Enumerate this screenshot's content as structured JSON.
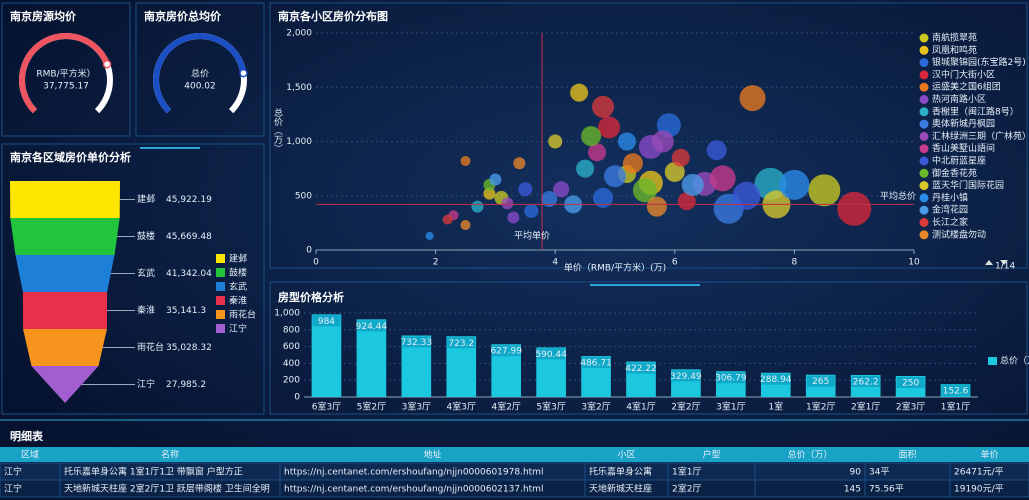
{
  "chart_data": [
    {
      "type": "gauge",
      "title": "南京房源均价",
      "label": "RMB/平方米）",
      "values": [
        37775.17
      ],
      "value_labels": [
        "37,775.17"
      ],
      "ylim": [
        0,
        50000
      ],
      "color": "#ee5560"
    },
    {
      "type": "gauge",
      "title": "南京房价总均价",
      "label": "总价",
      "values": [
        400.02
      ],
      "ylim": [
        0,
        500
      ],
      "color": "#1c4fc4"
    },
    {
      "type": "funnel",
      "title": "南京各区域房价单价分析",
      "categories": [
        "建邺",
        "鼓楼",
        "玄武",
        "秦淮",
        "雨花台",
        "江宁"
      ],
      "values": [
        45922.19,
        45669.48,
        41342.04,
        35141.3,
        35028.32,
        27985.2
      ],
      "value_labels": [
        "45,922.19",
        "45,669.48",
        "41,342.04",
        "35,141.3",
        "35,028.32",
        "27,985.2"
      ],
      "colors": [
        "#ffe600",
        "#21c43a",
        "#1e7fd8",
        "#e8304a",
        "#f7941d",
        "#a25ed1"
      ]
    },
    {
      "type": "scatter",
      "title": "南京各小区房价分布图",
      "xlabel": "单价（RMB/平方米）(万)",
      "ylabel": "总价（万）",
      "xlim": [
        0,
        10
      ],
      "xticks": [
        0,
        2,
        4,
        6,
        8,
        10
      ],
      "ylim": [
        0,
        2000
      ],
      "yticks": [
        0,
        500,
        {
          "value": 1000,
          "label": "1,000"
        },
        {
          "value": 1500,
          "label": "1,500"
        },
        {
          "value": 2000,
          "label": "2,000"
        }
      ],
      "mark_lines": [
        {
          "label": "平均单价",
          "axis": "x",
          "value": 3.78
        },
        {
          "label": "平均总价",
          "axis": "y",
          "value": 420
        }
      ],
      "legend_page": "1/14",
      "series": [
        {
          "name": "南航揽翠苑",
          "color": "#c8c820",
          "x": [
            8.5,
            3.1,
            5.2
          ],
          "y": [
            550,
            480,
            700
          ],
          "size": [
            16,
            7,
            9
          ]
        },
        {
          "name": "凤凰和鸣苑",
          "color": "#e8c21a",
          "x": [
            4.4,
            5.6,
            2.9
          ],
          "y": [
            1450,
            620,
            520
          ],
          "size": [
            9,
            12,
            6
          ]
        },
        {
          "name": "银城聚锦园(东宝路2号)",
          "color": "#2a6ad8",
          "x": [
            5.9,
            4.8,
            3.6
          ],
          "y": [
            1150,
            480,
            360
          ],
          "size": [
            12,
            10,
            7
          ]
        },
        {
          "name": "汉中门大街小区",
          "color": "#d8283a",
          "x": [
            9.0,
            4.9,
            6.2
          ],
          "y": [
            380,
            1130,
            450
          ],
          "size": [
            17,
            11,
            9
          ]
        },
        {
          "name": "运盛美之国6组团",
          "color": "#e87820",
          "x": [
            7.3,
            5.3,
            2.5
          ],
          "y": [
            1400,
            800,
            820
          ],
          "size": [
            13,
            10,
            5
          ]
        },
        {
          "name": "热河南路小区",
          "color": "#8a4ac8",
          "x": [
            5.6,
            4.1,
            3.3
          ],
          "y": [
            950,
            560,
            300
          ],
          "size": [
            12,
            8,
            6
          ]
        },
        {
          "name": "香榭里（闽江路8号）",
          "color": "#2ab0c8",
          "x": [
            7.6,
            4.5,
            2.7
          ],
          "y": [
            610,
            750,
            400
          ],
          "size": [
            16,
            9,
            6
          ]
        },
        {
          "name": "奥体新城丹枫园",
          "color": "#3a7ae0",
          "x": [
            6.9,
            5.0,
            3.9
          ],
          "y": [
            380,
            680,
            470
          ],
          "size": [
            15,
            11,
            8
          ]
        },
        {
          "name": "汇林绿洲三期（广林苑）",
          "color": "#9a4ab8",
          "x": [
            5.8,
            6.5,
            3.2
          ],
          "y": [
            1000,
            610,
            430
          ],
          "size": [
            11,
            12,
            6
          ]
        },
        {
          "name": "香山美墅山語间",
          "color": "#c83a8a",
          "x": [
            6.8,
            4.7,
            2.3
          ],
          "y": [
            660,
            900,
            320
          ],
          "size": [
            13,
            9,
            5
          ]
        },
        {
          "name": "中北蔚蓝星座",
          "color": "#3a5ad8",
          "x": [
            6.7,
            7.2,
            3.5
          ],
          "y": [
            920,
            500,
            560
          ],
          "size": [
            10,
            14,
            7
          ]
        },
        {
          "name": "御金香花苑",
          "color": "#6ab82a",
          "x": [
            4.6,
            5.5,
            2.9
          ],
          "y": [
            1050,
            550,
            600
          ],
          "size": [
            10,
            12,
            6
          ]
        },
        {
          "name": "蓝天华门国际花园",
          "color": "#d8c82a",
          "x": [
            7.7,
            4.0,
            6.0
          ],
          "y": [
            420,
            1000,
            720
          ],
          "size": [
            14,
            7,
            10
          ]
        },
        {
          "name": "丹桂小镇",
          "color": "#2a8ae8",
          "x": [
            8.0,
            5.2,
            1.9
          ],
          "y": [
            600,
            1000,
            130
          ],
          "size": [
            15,
            9,
            4
          ]
        },
        {
          "name": "金湾花园",
          "color": "#4a9ae8",
          "x": [
            6.3,
            4.3,
            3.0
          ],
          "y": [
            600,
            420,
            650
          ],
          "size": [
            11,
            9,
            6
          ]
        },
        {
          "name": "长江之家",
          "color": "#d83a3a",
          "x": [
            4.8,
            6.1,
            2.2
          ],
          "y": [
            1320,
            850,
            280
          ],
          "size": [
            11,
            9,
            5
          ]
        },
        {
          "name": "测试楼盘勿动",
          "color": "#e8882a",
          "x": [
            3.4,
            5.7,
            2.5
          ],
          "y": [
            800,
            400,
            230
          ],
          "size": [
            6,
            10,
            5
          ]
        }
      ]
    },
    {
      "type": "bar",
      "title": "房型价格分析",
      "categories": [
        "6室3厅",
        "5室2厅",
        "3室3厅",
        "4室3厅",
        "4室2厅",
        "5室3厅",
        "3室2厅",
        "4室1厅",
        "2室2厅",
        "3室1厅",
        "1室",
        "1室2厅",
        "2室1厅",
        "2室3厅",
        "1室1厅"
      ],
      "series": [
        {
          "name": "总价（万）",
          "color": "#1bc8e0",
          "values": [
            984,
            924.44,
            732.33,
            723.2,
            627.99,
            590.44,
            486.71,
            422.22,
            329.49,
            306.79,
            288.94,
            265,
            262.2,
            250,
            152.6
          ]
        }
      ],
      "ylim": [
        0,
        1000
      ],
      "yticks": [
        0,
        200,
        400,
        600,
        800,
        {
          "value": 1000,
          "label": "1,000"
        }
      ]
    }
  ],
  "table": {
    "title": "明细表",
    "columns": [
      "区域",
      "名称",
      "地址",
      "小区",
      "户型",
      "总价（万）",
      "面积",
      "单价"
    ],
    "rows": [
      [
        "江宁",
        "托乐嘉单身公寓 1室1厅1卫 带飘窗 户型方正",
        "https://nj.centanet.com/ershoufang/njjn0000601978.html",
        "托乐嘉单身公寓",
        "1室1厅",
        "90",
        "34平",
        "26471元/平"
      ],
      [
        "江宁",
        "天地新城天柱座 2室2厅1卫 跃层带阁楼 卫生间全明",
        "https://nj.centanet.com/ershoufang/njjn0000602137.html",
        "天地新城天柱座",
        "2室2厅",
        "145",
        "75.56平",
        "19190元/平"
      ]
    ]
  }
}
